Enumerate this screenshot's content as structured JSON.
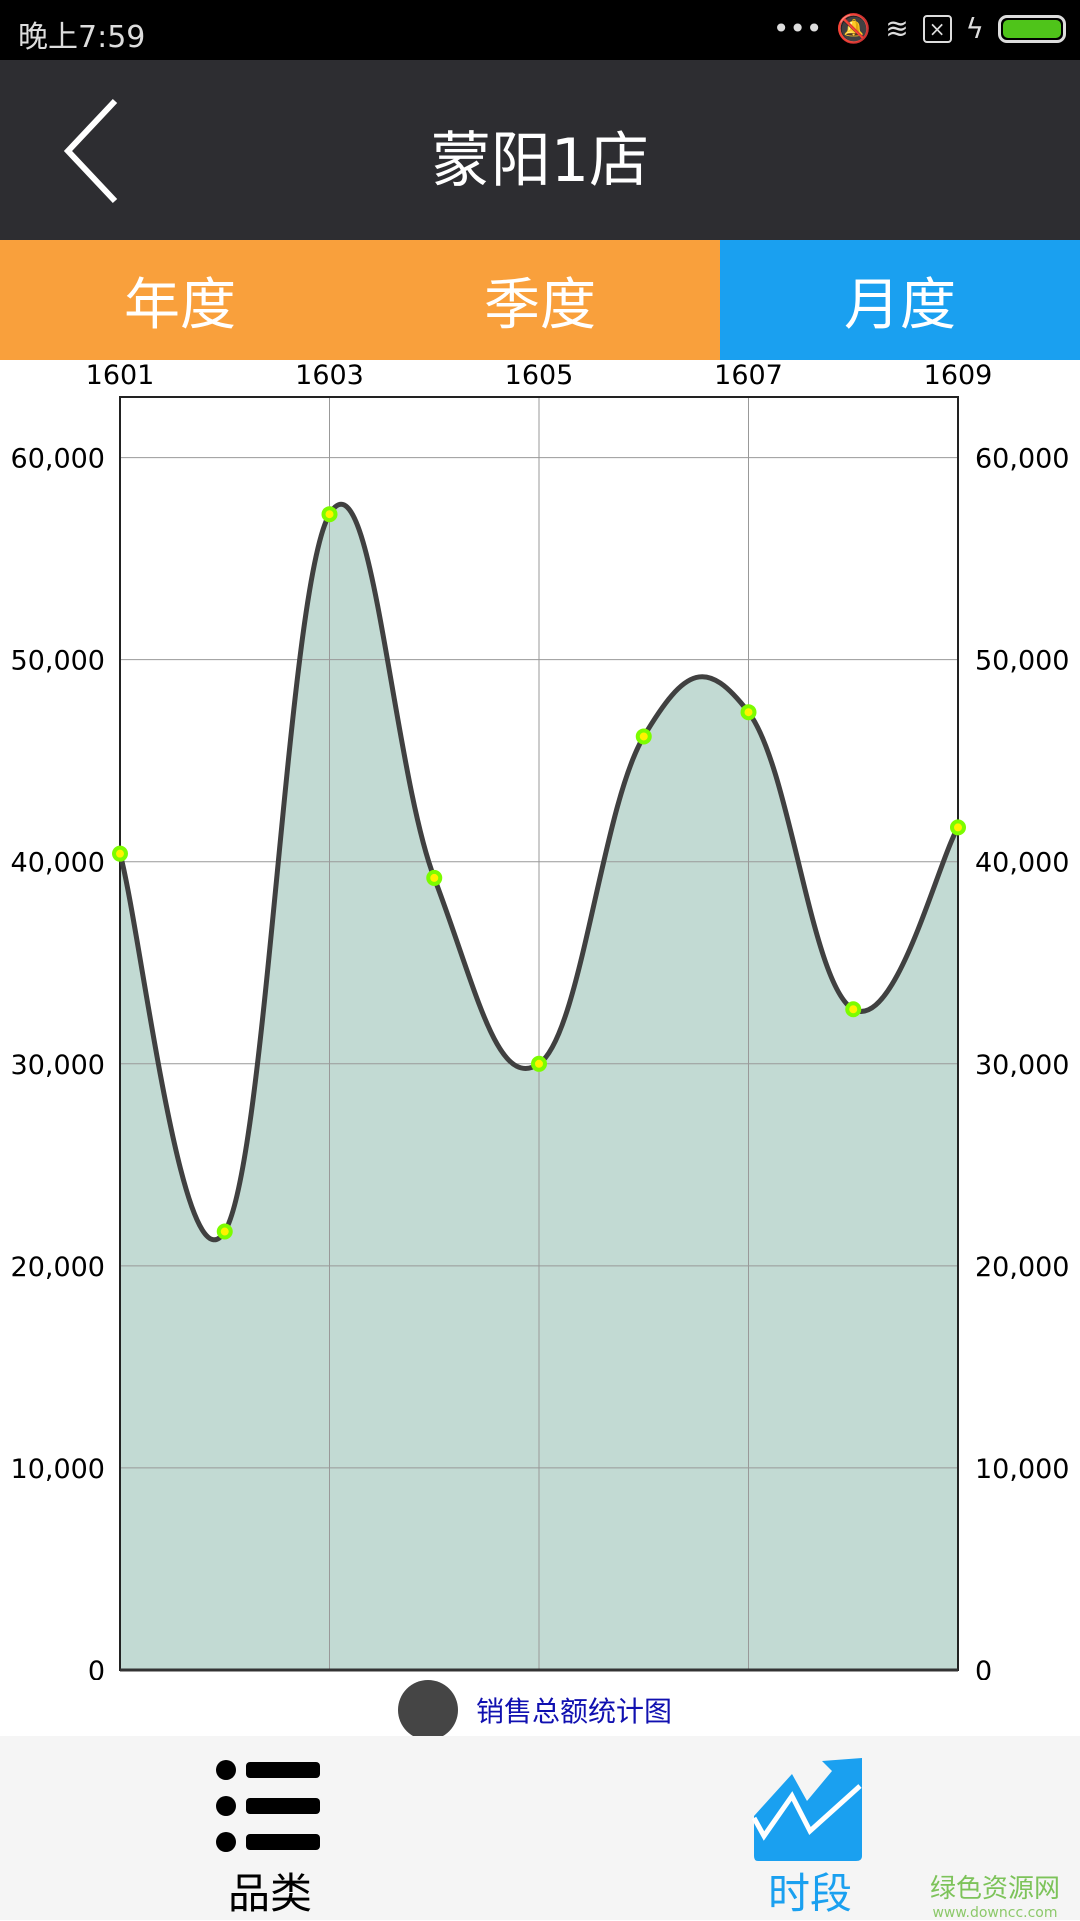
{
  "status_bar": {
    "time": "晚上7:59",
    "icons": [
      "more-dots-icon",
      "bell-muted-icon",
      "wifi-icon",
      "sim-x-icon",
      "charging-icon",
      "battery-icon"
    ],
    "battery_color": "#4fc41a"
  },
  "header": {
    "title": "蒙阳1店",
    "back_icon": "chevron-left-icon"
  },
  "tabs": [
    {
      "label": "年度",
      "active": false
    },
    {
      "label": "季度",
      "active": false
    },
    {
      "label": "月度",
      "active": true
    }
  ],
  "colors": {
    "tab_inactive": "#f9a03c",
    "tab_active": "#1aa0f0",
    "area_fill": "#c2dad3",
    "line": "#404040",
    "point": "#7cfc00"
  },
  "chart_data": {
    "type": "area",
    "x": [
      "1601",
      "1602",
      "1603",
      "1604",
      "1605",
      "1606",
      "1607",
      "1608",
      "1609"
    ],
    "x_tick_labels": [
      "1601",
      "1603",
      "1605",
      "1607",
      "1609"
    ],
    "values": [
      40400,
      21700,
      57200,
      39200,
      30000,
      46200,
      47400,
      32700,
      41700
    ],
    "y_ticks": [
      0,
      10000,
      20000,
      30000,
      40000,
      50000,
      60000
    ],
    "y_tick_labels": [
      "0",
      "10,000",
      "20,000",
      "30,000",
      "40,000",
      "50,000",
      "60,000"
    ],
    "ylim": [
      0,
      63000
    ],
    "smooth": true,
    "grid": true,
    "legend": {
      "label": "销售总额统计图",
      "placement": "bottom"
    }
  },
  "bottom_nav": [
    {
      "label": "品类",
      "icon": "list-icon",
      "active": false
    },
    {
      "label": "时段",
      "icon": "trend-chart-icon",
      "active": true
    }
  ],
  "watermark": {
    "name": "绿色资源网",
    "url": "www.downcc.com"
  }
}
